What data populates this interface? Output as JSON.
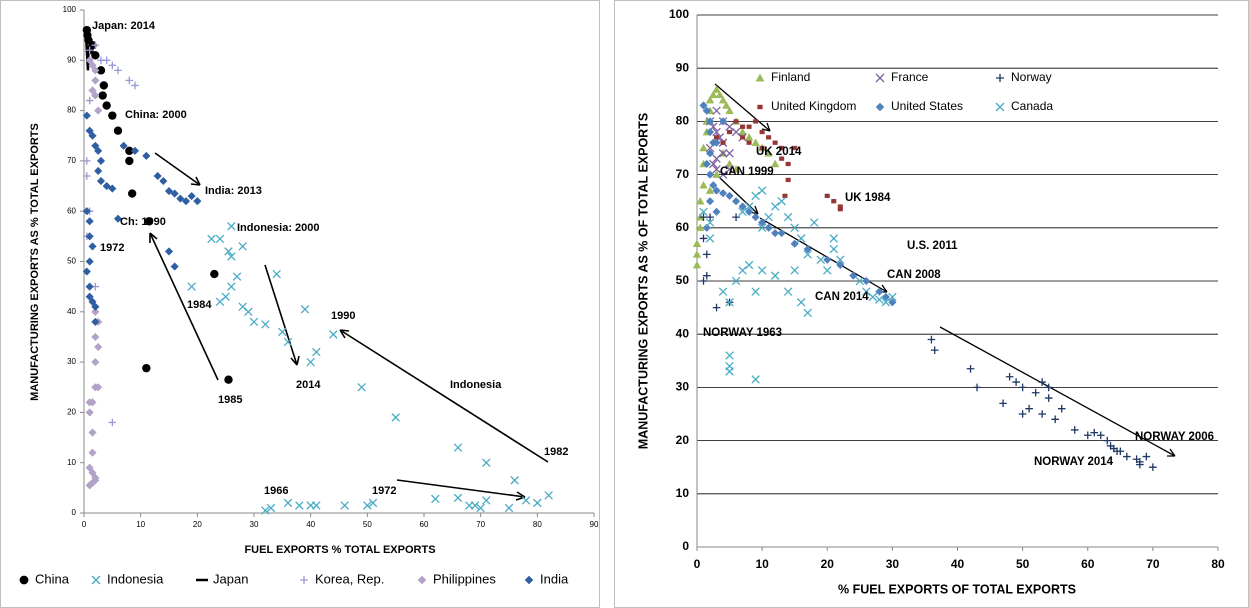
{
  "chart_data": [
    {
      "type": "scatter",
      "x_label": "FUEL EXPORTS % TOTAL EXPORTS",
      "y_label": "MANUFACTURING EXPORTS AS % TOTAL EXPORTS",
      "xlim": [
        0,
        90
      ],
      "xticks": [
        0,
        10,
        20,
        30,
        40,
        50,
        60,
        70,
        80,
        90
      ],
      "ylim": [
        0,
        100
      ],
      "yticks": [
        0,
        10,
        20,
        30,
        40,
        50,
        60,
        70,
        80,
        90,
        100
      ],
      "grid": false,
      "legend": "bottom",
      "annotations": [
        "Japan: 2014",
        "China: 2000",
        "India: 2013",
        "Ch: 1990",
        "Indonesia: 2000",
        "1972",
        "1984",
        "1985",
        "2014",
        "1990",
        "Indonesia",
        "1966",
        "1972",
        "1982"
      ],
      "series": [
        {
          "name": "China",
          "color": "#000000",
          "marker": "circle",
          "x": [
            0.5,
            0.6,
            0.8,
            1,
            1.5,
            2,
            3,
            3.5,
            3.3,
            4,
            5,
            6,
            8,
            8,
            8.5,
            11.5,
            23,
            11,
            25.5
          ],
          "values": [
            96,
            95,
            94,
            92,
            93,
            91,
            88,
            85,
            83,
            81,
            79,
            76,
            72,
            70,
            63.5,
            58,
            47.5,
            28.8,
            26.5
          ]
        },
        {
          "name": "Indonesia",
          "color": "#4bacc6",
          "marker": "x",
          "x": [
            32,
            33,
            36,
            38,
            40,
            41,
            46,
            50,
            51,
            62,
            66,
            68,
            69,
            70,
            71,
            75,
            76,
            78,
            80,
            82,
            71,
            66,
            55,
            49,
            44,
            41,
            40,
            36,
            35,
            34,
            32,
            29,
            28,
            26,
            27,
            24,
            25,
            26,
            25.5,
            26,
            28,
            22.5,
            24,
            19,
            39,
            30
          ],
          "values": [
            0.5,
            1,
            2,
            1.5,
            1.5,
            1.5,
            1.5,
            1.5,
            2,
            2.8,
            3,
            1.5,
            1.5,
            1,
            2.5,
            1,
            6.5,
            2.5,
            2,
            3.5,
            10,
            13,
            19,
            25,
            35.5,
            32,
            30,
            34,
            36,
            47.5,
            37.5,
            40,
            41,
            45,
            47,
            42,
            43,
            51,
            52,
            57,
            53,
            54.5,
            54.5,
            45,
            40.5,
            38
          ]
        },
        {
          "name": "Japan",
          "color": "#000000",
          "marker": "line",
          "x": [
            0.3,
            0.4,
            0.5,
            0.6,
            0.7,
            0.8
          ],
          "values": [
            95,
            94,
            92,
            90,
            88,
            93
          ]
        },
        {
          "name": "Korea, Rep.",
          "color": "#9999d6",
          "marker": "plus",
          "x": [
            1,
            2,
            3,
            4,
            5,
            6,
            8,
            9,
            1,
            1.5,
            0.5,
            0.5,
            1,
            1,
            2,
            5,
            0.5,
            1.5
          ],
          "values": [
            92,
            93,
            90,
            90,
            89,
            88,
            86,
            85,
            82,
            84,
            70,
            67,
            60,
            45,
            45,
            18,
            55,
            75
          ]
        },
        {
          "name": "Philippines",
          "color": "#b3a2c7",
          "marker": "diamond",
          "x": [
            1,
            1.5,
            2,
            2,
            1.5,
            2,
            2.5,
            2,
            2.5,
            2,
            2.5,
            2,
            2,
            2.5,
            1,
            1,
            1.5,
            1.5,
            1,
            1.5,
            2,
            1.5,
            2,
            1,
            1.5
          ],
          "values": [
            90,
            89,
            88,
            86,
            84,
            83,
            80,
            40,
            38,
            35,
            33,
            30,
            25,
            25,
            22,
            20,
            16,
            12,
            9,
            8,
            7,
            6,
            6.5,
            5.5,
            22
          ]
        },
        {
          "name": "India",
          "color": "#2f5fa3",
          "marker": "diamond",
          "x": [
            0.5,
            1,
            1.5,
            2,
            2.5,
            3,
            2.5,
            3,
            4,
            5,
            7,
            9,
            11,
            13,
            14,
            15,
            16,
            17,
            18,
            19,
            20,
            6,
            15,
            16,
            0.5,
            1,
            1,
            1.5,
            1,
            0.5,
            1,
            1,
            1.5,
            2,
            2
          ],
          "values": [
            79,
            76,
            75,
            73,
            72,
            70,
            68,
            66,
            65,
            64.5,
            73,
            72,
            71,
            67,
            66,
            64,
            63.5,
            62.5,
            62,
            63,
            62,
            58.5,
            52,
            49,
            60,
            58,
            55,
            53,
            50,
            48,
            45,
            43,
            42,
            41,
            38
          ]
        }
      ]
    },
    {
      "type": "scatter",
      "x_label": "% FUEL EXPORTS OF TOTAL EXPORTS",
      "y_label": "MANUFACTURING EXPORTS AS % OF TOTAL EXPORTS",
      "xlim": [
        0,
        80
      ],
      "xticks": [
        0,
        10,
        20,
        30,
        40,
        50,
        60,
        70,
        80
      ],
      "ylim": [
        0,
        100
      ],
      "yticks": [
        0,
        10,
        20,
        30,
        40,
        50,
        60,
        70,
        80,
        90,
        100
      ],
      "grid": true,
      "legend": "top",
      "annotations": [
        "UK 2014",
        "CAN 1999",
        "UK 1984",
        "U.S. 2011",
        "CAN 2008",
        "CAN 2014",
        "NORWAY 1963",
        "NORWAY 2006",
        "NORWAY 2014"
      ],
      "series": [
        {
          "name": "Finland",
          "color": "#9bbb59",
          "marker": "triangle",
          "x": [
            0,
            0,
            0,
            0.5,
            0.5,
            1,
            1,
            1,
            1.5,
            1.5,
            2,
            2,
            2.5,
            3,
            3.5,
            4,
            4.5,
            5,
            6,
            7,
            8,
            9,
            10,
            11,
            12,
            4,
            5,
            6,
            3,
            2,
            0.5
          ],
          "values": [
            57,
            55,
            53,
            62,
            65,
            68,
            72,
            75,
            78,
            80,
            82,
            84,
            85,
            86,
            85,
            84,
            83,
            82,
            80,
            78,
            77,
            76,
            75,
            74,
            72,
            74,
            72,
            71,
            70,
            67,
            60
          ]
        },
        {
          "name": "France",
          "color": "#8064a2",
          "marker": "x",
          "x": [
            2,
            2.5,
            3,
            3.5,
            4,
            4,
            3,
            2.5,
            3,
            4,
            5,
            5,
            2,
            3,
            4,
            5,
            6,
            7
          ],
          "values": [
            80,
            79,
            78,
            77,
            76,
            74,
            73,
            72,
            71,
            70,
            71,
            74,
            75,
            82,
            80,
            79,
            78,
            77
          ]
        },
        {
          "name": "Norway",
          "color": "#1f3864",
          "marker": "plus",
          "x": [
            1,
            1,
            1.5,
            1.5,
            1,
            2,
            3,
            5,
            6,
            36,
            36.5,
            42,
            43,
            47,
            48,
            49,
            50,
            50,
            51,
            52,
            53,
            53,
            54,
            54,
            55,
            56,
            58,
            60,
            61,
            62,
            63,
            63.5,
            64,
            64.5,
            65,
            66,
            67.5,
            68,
            68,
            69,
            70
          ],
          "values": [
            62,
            58,
            55,
            51,
            50,
            62,
            45,
            46,
            62,
            39,
            37,
            33.5,
            30,
            27,
            32,
            31,
            30,
            25,
            26,
            29,
            31,
            25,
            30,
            28,
            24,
            26,
            22,
            21,
            21.5,
            21,
            20,
            19,
            18.5,
            18,
            18,
            17,
            16.5,
            16,
            15.5,
            17,
            15
          ]
        },
        {
          "name": "United Kingdom",
          "color": "#953735",
          "marker": "rect",
          "x": [
            3,
            4,
            5,
            6,
            7,
            8,
            9,
            10,
            11,
            12,
            13,
            13,
            14,
            14,
            13.5,
            15,
            20,
            21,
            22,
            22,
            10,
            8,
            7
          ],
          "values": [
            77,
            76,
            78,
            80,
            79,
            79,
            80,
            78,
            77,
            76,
            75,
            73,
            72,
            69,
            66,
            75,
            66,
            65,
            64,
            63.5,
            75,
            76,
            77
          ]
        },
        {
          "name": "United States",
          "color": "#4f81bd",
          "marker": "diamond",
          "x": [
            1,
            1.5,
            2,
            2,
            2.5,
            2,
            1.5,
            2,
            2.5,
            3,
            4,
            5,
            6,
            7,
            8,
            9,
            10,
            11,
            12,
            13,
            15,
            17,
            20,
            22,
            24,
            26,
            28,
            29,
            30,
            2,
            3,
            1.5,
            3,
            4
          ],
          "values": [
            83,
            82,
            80,
            78,
            76,
            74,
            72,
            70,
            68,
            67,
            66.5,
            66,
            65,
            64,
            63,
            62,
            61,
            60,
            59,
            59,
            57,
            56,
            54,
            53,
            51,
            50,
            48,
            47,
            46,
            65,
            63,
            60,
            76,
            80
          ]
        },
        {
          "name": "Canada",
          "color": "#4bacc6",
          "marker": "x",
          "x": [
            1,
            2,
            2,
            4,
            5,
            5,
            5,
            5,
            9,
            6,
            7,
            8,
            9,
            10,
            11,
            12,
            13,
            14,
            15,
            16,
            17,
            18,
            19,
            20,
            21,
            21,
            16,
            17,
            14,
            12,
            10,
            9,
            10,
            8,
            7,
            22,
            25,
            27,
            28,
            29,
            30,
            26,
            15
          ],
          "values": [
            63,
            61,
            58,
            48,
            46,
            36,
            34,
            33,
            31.5,
            50,
            52,
            53,
            48,
            60,
            62,
            64,
            65,
            62,
            60,
            58,
            55,
            61,
            54,
            52,
            56,
            58,
            46,
            44,
            48,
            51,
            52,
            66,
            67,
            64,
            63,
            54,
            50,
            47,
            46.5,
            46,
            47,
            48,
            52
          ]
        }
      ]
    }
  ]
}
